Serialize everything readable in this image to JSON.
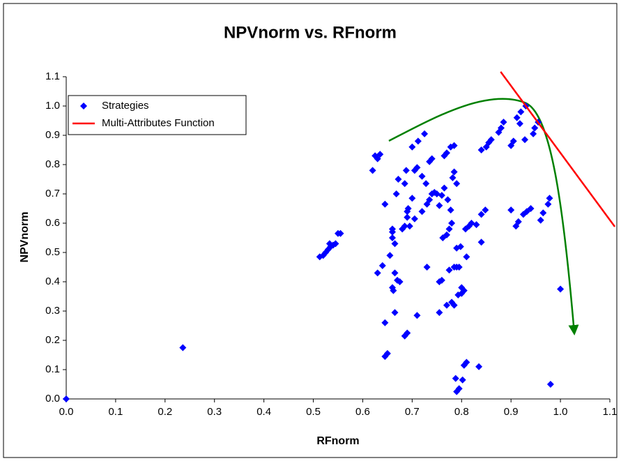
{
  "chart_data": {
    "type": "scatter",
    "title": "NPVnorm vs. RFnorm",
    "x_label": "RFnorm",
    "y_label": "NPVnorm",
    "xlim": [
      0,
      1.1
    ],
    "ylim": [
      0,
      1.1
    ],
    "xticks": [
      {
        "value": 0,
        "label": "0.0"
      },
      0.1,
      0.2,
      0.3,
      0.4,
      0.5,
      0.6,
      0.7,
      0.8,
      0.9,
      {
        "value": 1,
        "label": "1.0"
      },
      1.1
    ],
    "yticks": [
      {
        "value": 0,
        "label": "0.0"
      },
      0.1,
      0.2,
      0.3,
      0.4,
      0.5,
      0.6,
      0.7,
      0.8,
      0.9,
      {
        "value": 1,
        "label": "1.0"
      },
      1.1
    ],
    "legend": "top-left",
    "series": [
      {
        "name": "Strategies",
        "color": "#0000ff",
        "marker": "diamond",
        "x": [
          0,
          0.236,
          0.513,
          0.52,
          0.525,
          0.53,
          0.535,
          0.54,
          0.545,
          0.55,
          0.555,
          0.533,
          0.62,
          0.625,
          0.63,
          0.635,
          0.63,
          0.64,
          0.645,
          0.645,
          0.645,
          0.65,
          0.655,
          0.66,
          0.66,
          0.66,
          0.66,
          0.662,
          0.665,
          0.665,
          0.665,
          0.668,
          0.672,
          0.67,
          0.675,
          0.68,
          0.685,
          0.685,
          0.685,
          0.69,
          0.688,
          0.69,
          0.69,
          0.692,
          0.695,
          0.7,
          0.7,
          0.705,
          0.705,
          0.71,
          0.71,
          0.712,
          0.72,
          0.72,
          0.725,
          0.728,
          0.73,
          0.73,
          0.735,
          0.735,
          0.74,
          0.74,
          0.745,
          0.75,
          0.755,
          0.755,
          0.755,
          0.76,
          0.76,
          0.762,
          0.765,
          0.765,
          0.77,
          0.77,
          0.77,
          0.772,
          0.775,
          0.775,
          0.778,
          0.778,
          0.78,
          0.78,
          0.782,
          0.785,
          0.785,
          0.785,
          0.785,
          0.788,
          0.79,
          0.79,
          0.79,
          0.79,
          0.793,
          0.795,
          0.795,
          0.798,
          0.8,
          0.8,
          0.802,
          0.805,
          0.805,
          0.808,
          0.81,
          0.81,
          0.815,
          0.82,
          0.83,
          0.835,
          0.84,
          0.84,
          0.84,
          0.848,
          0.85,
          0.855,
          0.86,
          0.875,
          0.88,
          0.885,
          0.9,
          0.9,
          0.905,
          0.91,
          0.912,
          0.915,
          0.918,
          0.92,
          0.925,
          0.928,
          0.93,
          0.932,
          0.94,
          0.945,
          0.948,
          0.955,
          0.96,
          0.965,
          0.975,
          0.978,
          0.98,
          1.0
        ],
        "y": [
          0,
          0.175,
          0.485,
          0.49,
          0.5,
          0.51,
          0.52,
          0.525,
          0.53,
          0.565,
          0.565,
          0.53,
          0.78,
          0.83,
          0.82,
          0.835,
          0.43,
          0.455,
          0.665,
          0.26,
          0.145,
          0.155,
          0.49,
          0.57,
          0.58,
          0.55,
          0.38,
          0.37,
          0.53,
          0.295,
          0.43,
          0.7,
          0.75,
          0.405,
          0.4,
          0.58,
          0.59,
          0.735,
          0.215,
          0.225,
          0.78,
          0.64,
          0.62,
          0.65,
          0.59,
          0.86,
          0.685,
          0.78,
          0.615,
          0.79,
          0.285,
          0.88,
          0.76,
          0.64,
          0.905,
          0.735,
          0.665,
          0.45,
          0.68,
          0.81,
          0.82,
          0.7,
          0.705,
          0.7,
          0.66,
          0.4,
          0.295,
          0.695,
          0.405,
          0.55,
          0.83,
          0.72,
          0.84,
          0.56,
          0.32,
          0.68,
          0.58,
          0.44,
          0.86,
          0.645,
          0.6,
          0.33,
          0.755,
          0.865,
          0.775,
          0.45,
          0.32,
          0.07,
          0.735,
          0.515,
          0.45,
          0.025,
          0.355,
          0.45,
          0.035,
          0.52,
          0.38,
          0.36,
          0.065,
          0.37,
          0.115,
          0.58,
          0.485,
          0.125,
          0.59,
          0.6,
          0.595,
          0.11,
          0.535,
          0.63,
          0.85,
          0.645,
          0.86,
          0.875,
          0.885,
          0.91,
          0.925,
          0.945,
          0.865,
          0.645,
          0.88,
          0.59,
          0.96,
          0.605,
          0.94,
          0.98,
          0.63,
          0.885,
          1.0,
          0.64,
          0.65,
          0.905,
          0.925,
          0.945,
          0.61,
          0.635,
          0.665,
          0.685,
          0.05,
          0.375
        ]
      },
      {
        "name": "Multi-Attributes Function",
        "color": "#ff0000",
        "mode": "line",
        "x": [
          0.879,
          1.11
        ],
        "y": [
          1.117,
          0.588
        ]
      }
    ]
  }
}
